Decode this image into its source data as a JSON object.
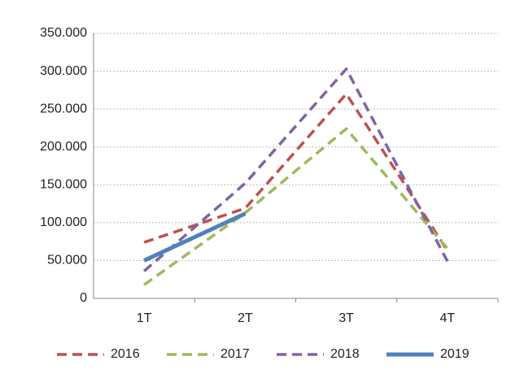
{
  "chart_data": {
    "type": "line",
    "categories": [
      "1T",
      "2T",
      "3T",
      "4T"
    ],
    "series": [
      {
        "name": "2016",
        "color": "#c0504d",
        "dashed": true,
        "values": [
          74000,
          119000,
          270000,
          63000
        ]
      },
      {
        "name": "2017",
        "color": "#9bbb59",
        "dashed": true,
        "values": [
          18000,
          113000,
          224000,
          66000
        ]
      },
      {
        "name": "2018",
        "color": "#8064a2",
        "dashed": true,
        "values": [
          36000,
          152000,
          303000,
          49000
        ]
      },
      {
        "name": "2019",
        "color": "#4f81bd",
        "dashed": false,
        "values": [
          50000,
          112000,
          null,
          null
        ]
      }
    ],
    "ylim": [
      0,
      350000
    ],
    "yticks": [
      0,
      {
        "value": 50000,
        "label": "50.000"
      },
      {
        "value": 100000,
        "label": "100.000"
      },
      {
        "value": 150000,
        "label": "150.000"
      },
      {
        "value": 200000,
        "label": "200.000"
      },
      {
        "value": 250000,
        "label": "250.000"
      },
      {
        "value": 300000,
        "label": "300.000"
      },
      {
        "value": 350000,
        "label": "350.000"
      }
    ],
    "grid": true,
    "legend": "bottom"
  }
}
